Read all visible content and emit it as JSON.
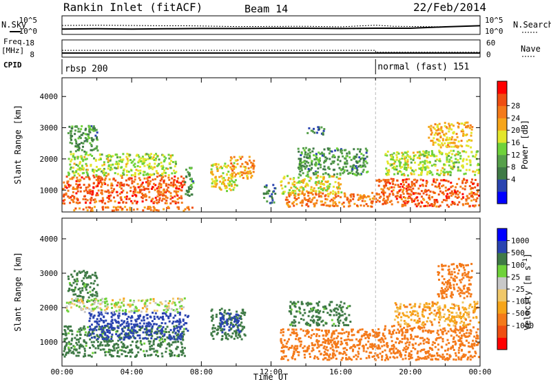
{
  "header": {
    "station": "Rankin Inlet (fitACF)",
    "beam": "Beam 14",
    "date": "22/Feb/2014"
  },
  "left_labels": {
    "nsky": "N.Sky",
    "freq": "Freq.",
    "freq_unit": "[MHz]",
    "cpid": "CPID"
  },
  "right_labels": {
    "nsearch": "N.Search",
    "nave": "Nave"
  },
  "modes": [
    {
      "label": "rbsp 200",
      "start_hour": 0.0
    },
    {
      "label": "normal (fast) 151",
      "start_hour": 18.0
    }
  ],
  "colors": {
    "power": [
      "#0000ff",
      "#2a44b0",
      "#3f7a46",
      "#56a04a",
      "#6fd23a",
      "#e3e62c",
      "#f6a51a",
      "#f47a1a",
      "#ef4e12",
      "#ff0000"
    ],
    "velocity": [
      "#ff0000",
      "#ef4e12",
      "#f47a1a",
      "#f6a51a",
      "#f0c86a",
      "#c8c8c8",
      "#6fd23a",
      "#3f7a46",
      "#2a44b0",
      "#0000ff"
    ]
  },
  "chart_data": [
    {
      "type": "line",
      "title": "N.Sky / N.Search",
      "x_range": [
        0,
        24
      ],
      "left_axis": {
        "ticks": [
          "10^5",
          "10^0"
        ]
      },
      "right_axis": {
        "ticks": [
          "10^5",
          "10^0"
        ]
      },
      "series": [
        {
          "name": "N.Sky",
          "style": "solid",
          "x": [
            0,
            2,
            4,
            6,
            8,
            10,
            12,
            14,
            16,
            18,
            19,
            20,
            22,
            24
          ],
          "y_log10": [
            1.2,
            1.3,
            1.2,
            1.3,
            1.4,
            1.4,
            1.5,
            1.5,
            1.4,
            1.5,
            1.5,
            1.5,
            2.0,
            2.4
          ]
        },
        {
          "name": "N.Search",
          "style": "dotted",
          "x": [
            0,
            2,
            4,
            6,
            7,
            10,
            14,
            16,
            18,
            19,
            22,
            24
          ],
          "y_log10": [
            2.5,
            2.6,
            2.5,
            2.4,
            2.4,
            2.1,
            2.2,
            2.0,
            2.6,
            2.2,
            2.0,
            2.4
          ]
        }
      ]
    },
    {
      "type": "line",
      "title": "Freq. [MHz] / Nave",
      "x_range": [
        0,
        24
      ],
      "left_axis": {
        "ticks": [
          "18",
          "8"
        ]
      },
      "right_axis": {
        "ticks": [
          "60",
          "0"
        ]
      },
      "series": [
        {
          "name": "Freq.",
          "style": "solid",
          "x": [
            0,
            24
          ],
          "y": [
            10.3,
            10.3
          ]
        },
        {
          "name": "Nave",
          "style": "dotted",
          "x": [
            0,
            18,
            18.01,
            24
          ],
          "y": [
            28,
            28,
            18,
            18
          ]
        }
      ]
    },
    {
      "type": "heatmap",
      "title": "Power",
      "ylabel": "Slant Range [km]",
      "colorbar_label": "Power [dB]",
      "colorbar_ticks": [
        "28",
        "24",
        "20",
        "16",
        "12",
        "8",
        "4"
      ],
      "y_ticks": [
        "4000",
        "3000",
        "2000",
        "1000"
      ],
      "y_range": [
        300,
        4600
      ],
      "x_range": [
        0,
        24
      ],
      "echo_regions": [
        {
          "t": [
            0.0,
            7.0
          ],
          "r": [
            600,
            1500
          ],
          "level": 26
        },
        {
          "t": [
            0.3,
            6.5
          ],
          "r": [
            1500,
            2200
          ],
          "level": 16
        },
        {
          "t": [
            0.3,
            2.0
          ],
          "r": [
            2200,
            3100
          ],
          "level": 10
        },
        {
          "t": [
            0.5,
            7.5
          ],
          "r": [
            300,
            500
          ],
          "level": 24
        },
        {
          "t": [
            7.0,
            7.5
          ],
          "r": [
            800,
            1800
          ],
          "level": 10
        },
        {
          "t": [
            8.5,
            10.0
          ],
          "r": [
            1000,
            1900
          ],
          "level": 18
        },
        {
          "t": [
            9.5,
            11.0
          ],
          "r": [
            1400,
            2100
          ],
          "level": 22
        },
        {
          "t": [
            11.5,
            12.2
          ],
          "r": [
            600,
            1200
          ],
          "level": 8
        },
        {
          "t": [
            12.5,
            16.0
          ],
          "r": [
            900,
            1500
          ],
          "level": 18
        },
        {
          "t": [
            12.8,
            18.0
          ],
          "r": [
            500,
            950
          ],
          "level": 24
        },
        {
          "t": [
            13.5,
            17.5
          ],
          "r": [
            1500,
            2400
          ],
          "level": 10
        },
        {
          "t": [
            14.0,
            15.0
          ],
          "r": [
            2800,
            3050
          ],
          "level": 8
        },
        {
          "t": [
            18.0,
            24.0
          ],
          "r": [
            500,
            1400
          ],
          "level": 26
        },
        {
          "t": [
            18.5,
            24.0
          ],
          "r": [
            1500,
            2300
          ],
          "level": 16
        },
        {
          "t": [
            21.0,
            23.5
          ],
          "r": [
            2400,
            3200
          ],
          "level": 20
        }
      ]
    },
    {
      "type": "heatmap",
      "title": "Velocity",
      "ylabel": "Slant Range [km]",
      "xlabel": "Time UT",
      "colorbar_label": "Velocity [m s^-1]",
      "colorbar_ticks": [
        "1000",
        "500",
        "100",
        "25",
        "-25",
        "-100",
        "-500",
        "-1000"
      ],
      "y_ticks": [
        "4000",
        "3000",
        "2000",
        "1000"
      ],
      "y_range": [
        300,
        4600
      ],
      "x_ticks": [
        "00:00",
        "04:00",
        "08:00",
        "12:00",
        "16:00",
        "20:00",
        "00:00"
      ],
      "x_range": [
        0,
        24
      ],
      "echo_regions": [
        {
          "t": [
            0.0,
            7.0
          ],
          "r": [
            600,
            1500
          ],
          "level": 150
        },
        {
          "t": [
            1.5,
            7.2
          ],
          "r": [
            1100,
            1900
          ],
          "level": 800
        },
        {
          "t": [
            0.3,
            2.0
          ],
          "r": [
            2200,
            3100
          ],
          "level": 150
        },
        {
          "t": [
            0.2,
            7.0
          ],
          "r": [
            1900,
            2300
          ],
          "level": 20
        },
        {
          "t": [
            8.5,
            10.5
          ],
          "r": [
            1100,
            2000
          ],
          "level": 200
        },
        {
          "t": [
            9.0,
            10.2
          ],
          "r": [
            1300,
            1900
          ],
          "level": 800
        },
        {
          "t": [
            12.5,
            18.0
          ],
          "r": [
            500,
            1400
          ],
          "level": -300
        },
        {
          "t": [
            13.0,
            16.5
          ],
          "r": [
            1500,
            2200
          ],
          "level": 150
        },
        {
          "t": [
            18.0,
            24.0
          ],
          "r": [
            500,
            1500
          ],
          "level": -300
        },
        {
          "t": [
            19.0,
            24.0
          ],
          "r": [
            1500,
            2200
          ],
          "level": -60
        },
        {
          "t": [
            21.5,
            23.5
          ],
          "r": [
            2300,
            3300
          ],
          "level": -300
        }
      ]
    }
  ]
}
